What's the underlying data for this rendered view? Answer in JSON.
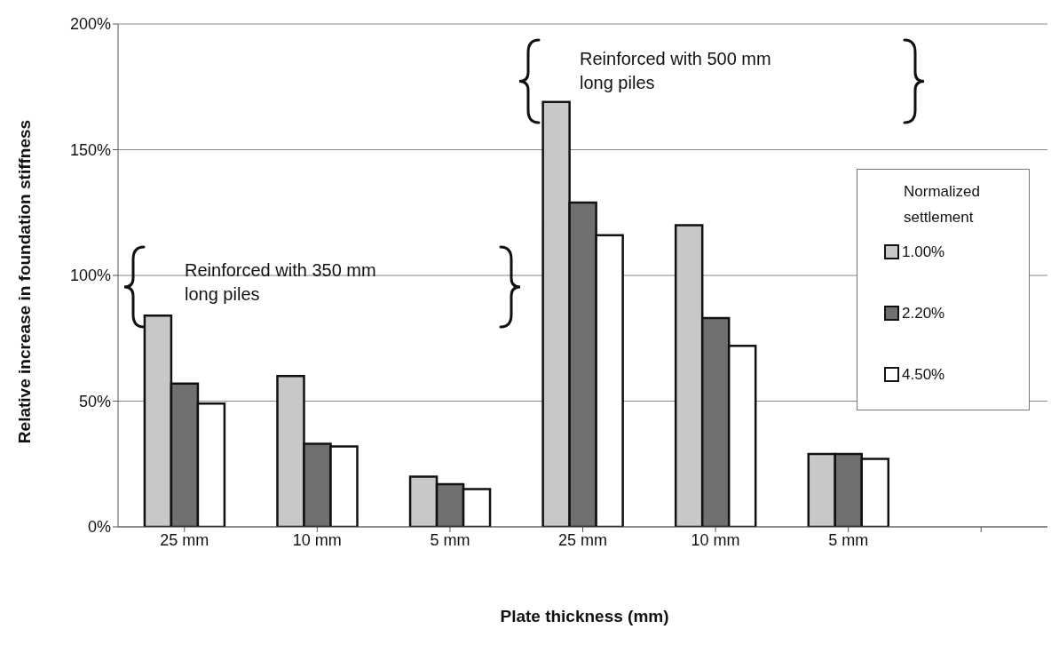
{
  "chart_data": {
    "type": "bar",
    "xlabel": "Plate thickness (mm)",
    "ylabel": "Relative increase in foundation stiffness",
    "legend_title": "Normalized settlement",
    "categories": [
      "25 mm",
      "10 mm",
      "5 mm",
      "25 mm",
      "10 mm",
      "5 mm",
      null
    ],
    "series": [
      {
        "name": "1.00%",
        "color": "#c8c8c8",
        "values": [
          84,
          60,
          20,
          169,
          120,
          29,
          null
        ]
      },
      {
        "name": "2.20%",
        "color": "#707070",
        "values": [
          57,
          33,
          17,
          129,
          83,
          29,
          null
        ]
      },
      {
        "name": "4.50%",
        "color": "#ffffff",
        "values": [
          49,
          32,
          15,
          116,
          72,
          27,
          null
        ]
      }
    ],
    "ylim": [
      0,
      200
    ],
    "yticks": [
      {
        "value": 0,
        "label": "0%"
      },
      {
        "value": 50,
        "label": "50%"
      },
      {
        "value": 100,
        "label": "100%"
      },
      {
        "value": 150,
        "label": "150%"
      },
      {
        "value": 200,
        "label": "200%"
      }
    ],
    "grid": "y",
    "legend": "right",
    "annotations": [
      "Reinforced with 350 mm long piles",
      "Reinforced with 500 mm long piles"
    ]
  }
}
